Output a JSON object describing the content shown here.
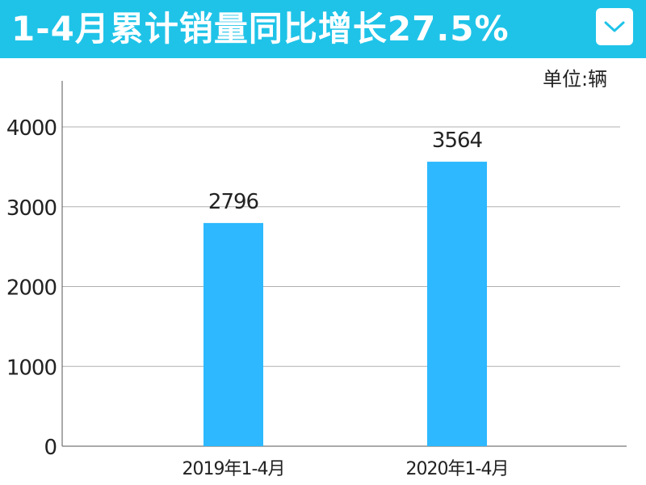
{
  "header": {
    "title": "1-4月累计销量同比增长27.5%",
    "dropdown_icon": "chevron-down-icon",
    "background_color": "#1fc3e8"
  },
  "chart_data": {
    "type": "bar",
    "categories": [
      "2019年1-4月",
      "2020年1-4月"
    ],
    "values": [
      2796,
      3564
    ],
    "data_labels": [
      "2796",
      "3564"
    ],
    "unit_label": "单位:辆",
    "ylim": [
      0,
      4500
    ],
    "yticks": [
      0,
      1000,
      2000,
      3000,
      4000
    ],
    "ytick_labels": [
      "0",
      "1000",
      "2000",
      "3000",
      "4000"
    ],
    "grid": true,
    "bar_color": "#2db8ff"
  }
}
